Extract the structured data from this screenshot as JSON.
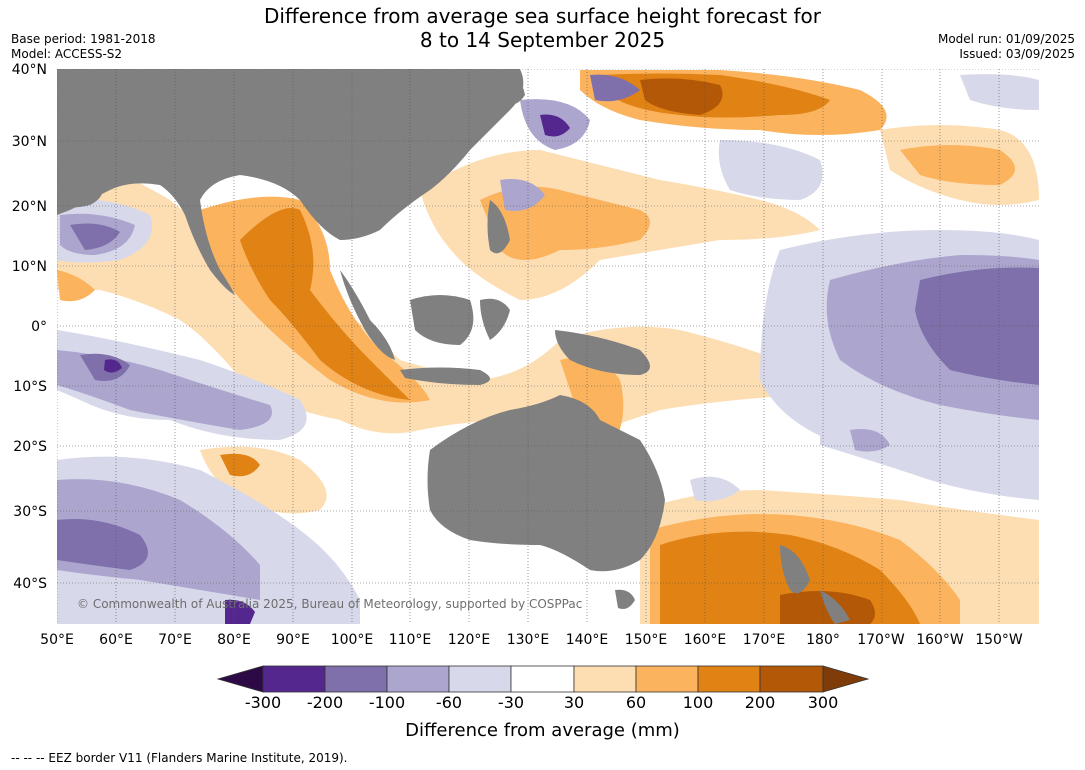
{
  "title": {
    "line1": "Difference from average sea surface height forecast for",
    "line2": "8 to 14 September 2025"
  },
  "meta_left": {
    "base_period": "Base period: 1981-2018",
    "model": "Model: ACCESS-S2"
  },
  "meta_right": {
    "model_run": "Model run: 01/09/2025",
    "issued": "Issued: 03/09/2025"
  },
  "latitude_labels": [
    "40°N",
    "30°N",
    "20°N",
    "10°N",
    "0°",
    "10°S",
    "20°S",
    "30°S",
    "40°S"
  ],
  "longitude_labels": [
    "50°E",
    "60°E",
    "70°E",
    "80°E",
    "90°E",
    "100°E",
    "110°E",
    "120°E",
    "130°E",
    "140°E",
    "150°E",
    "160°E",
    "170°E",
    "180°",
    "170°W",
    "160°W",
    "150°W"
  ],
  "colorbar": {
    "ticks": [
      "-300",
      "-200",
      "-100",
      "-60",
      "-30",
      "30",
      "60",
      "100",
      "200",
      "300"
    ],
    "colors": {
      "below_min": "#2d0a45",
      "neg_300_200": "#54278f",
      "neg_200_100": "#7f70ab",
      "neg_100_60": "#aca6cf",
      "neg_60_30": "#d7d8ea",
      "neutral": "#ffffff",
      "pos_30_60": "#fddeb3",
      "pos_60_100": "#fbb35e",
      "pos_100_200": "#e08214",
      "pos_200_300": "#b35806",
      "above_max": "#7f3b08"
    },
    "label": "Difference from average (mm)"
  },
  "land_color": "#808080",
  "watermark": "© Commonwealth of Australia 2025, Bureau of Meteorology, supported by COSPPac",
  "footnote": "--  --  -- EEZ border V11 (Flanders Marine Institute, 2019)."
}
